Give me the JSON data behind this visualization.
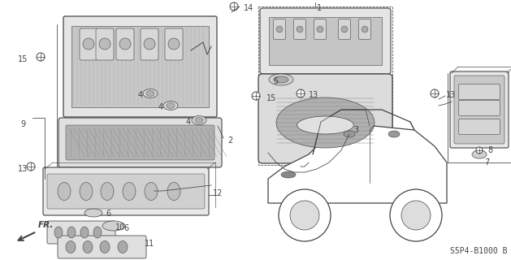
{
  "bg_color": "#ffffff",
  "diagram_code": "S5P4-B1000 B",
  "line_color": "#444444",
  "light_gray": "#bbbbbb",
  "mid_gray": "#888888",
  "dark_gray": "#555555",
  "hatch_color": "#999999"
}
